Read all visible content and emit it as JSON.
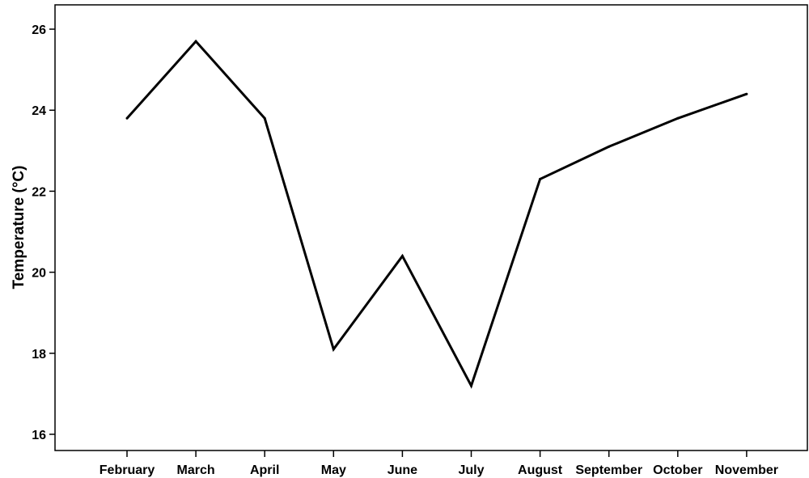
{
  "chart_data": {
    "type": "line",
    "title": "",
    "xlabel": "",
    "ylabel": "Temperature (°C)",
    "categories": [
      "February",
      "March",
      "April",
      "May",
      "June",
      "July",
      "August",
      "September",
      "October",
      "November"
    ],
    "series": [
      {
        "values": [
          23.8,
          25.7,
          23.8,
          18.1,
          20.4,
          17.2,
          22.3,
          23.1,
          23.8,
          24.4
        ],
        "color": "#000000"
      }
    ],
    "ylim": [
      15.6,
      26.6
    ],
    "yticks": [
      16,
      18,
      20,
      22,
      24,
      26
    ],
    "grid": false,
    "legend": "none"
  }
}
